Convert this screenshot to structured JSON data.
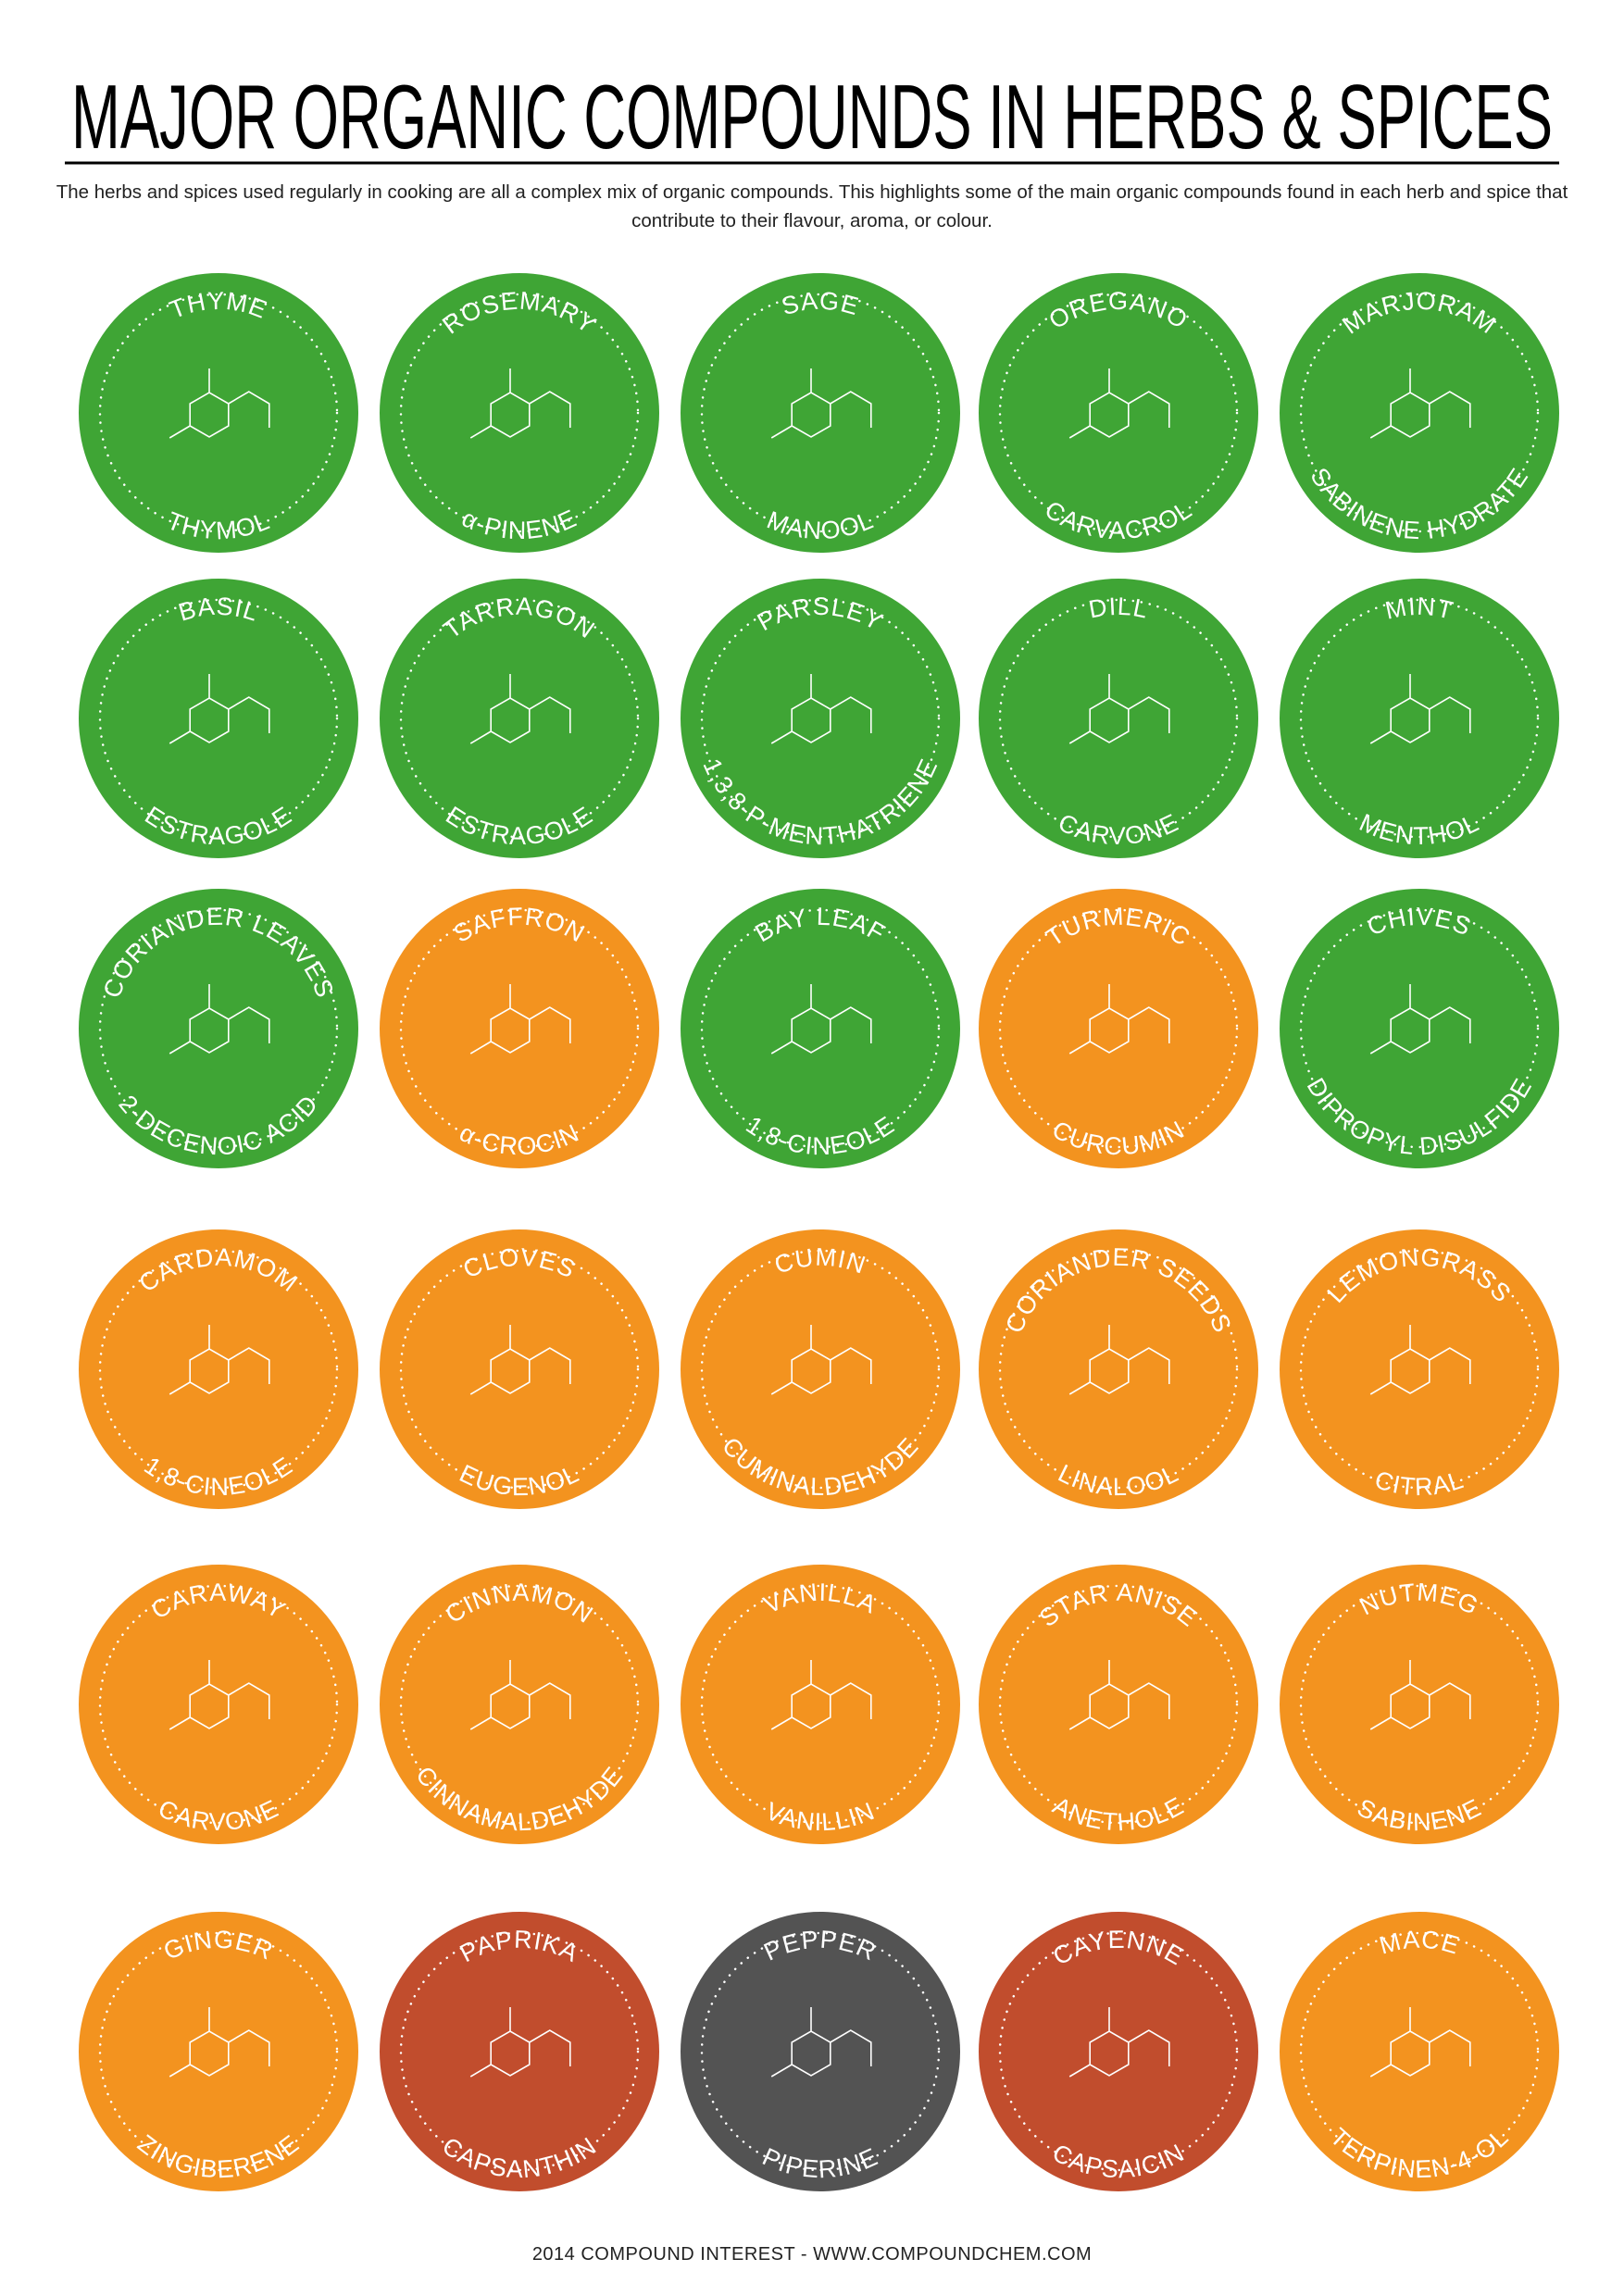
{
  "header": {
    "title": "MAJOR ORGANIC COMPOUNDS IN HERBS & SPICES",
    "subtitle": "The herbs and spices used regularly in cooking are all a complex mix of organic compounds. This highlights some of the main organic compounds found in each herb and spice that contribute to their flavour, aroma, or colour."
  },
  "items": [
    {
      "herb": "THYME",
      "compound": "THYMOL",
      "color": "#3fa535"
    },
    {
      "herb": "ROSEMARY",
      "compound": "α-PINENE",
      "color": "#3fa535"
    },
    {
      "herb": "SAGE",
      "compound": "MANOOL",
      "color": "#3fa535"
    },
    {
      "herb": "OREGANO",
      "compound": "CARVACROL",
      "color": "#3fa535"
    },
    {
      "herb": "MARJORAM",
      "compound": "SABINENE HYDRATE",
      "color": "#3fa535"
    },
    {
      "herb": "BASIL",
      "compound": "ESTRAGOLE",
      "color": "#3fa535"
    },
    {
      "herb": "TARRAGON",
      "compound": "ESTRAGOLE",
      "color": "#3fa535"
    },
    {
      "herb": "PARSLEY",
      "compound": "1,3,8-P-MENTHATRIENE",
      "color": "#3fa535"
    },
    {
      "herb": "DILL",
      "compound": "CARVONE",
      "color": "#3fa535"
    },
    {
      "herb": "MINT",
      "compound": "MENTHOL",
      "color": "#3fa535"
    },
    {
      "herb": "CORIANDER LEAVES",
      "compound": "2-DECENOIC ACID",
      "color": "#3fa535"
    },
    {
      "herb": "SAFFRON",
      "compound": "α-CROCIN",
      "color": "#f3931f"
    },
    {
      "herb": "BAY LEAF",
      "compound": "1,8-CINEOLE",
      "color": "#3fa535"
    },
    {
      "herb": "TURMERIC",
      "compound": "CURCUMIN",
      "color": "#f3931f"
    },
    {
      "herb": "CHIVES",
      "compound": "DIPROPYL DISULFIDE",
      "color": "#3fa535"
    },
    {
      "herb": "CARDAMOM",
      "compound": "1,8-CINEOLE",
      "color": "#f3931f"
    },
    {
      "herb": "CLOVES",
      "compound": "EUGENOL",
      "color": "#f3931f"
    },
    {
      "herb": "CUMIN",
      "compound": "CUMINALDEHYDE",
      "color": "#f3931f"
    },
    {
      "herb": "CORIANDER SEEDS",
      "compound": "LINALOOL",
      "color": "#f3931f"
    },
    {
      "herb": "LEMONGRASS",
      "compound": "CITRAL",
      "color": "#f3931f"
    },
    {
      "herb": "CARAWAY",
      "compound": "CARVONE",
      "color": "#f3931f"
    },
    {
      "herb": "CINNAMON",
      "compound": "CINNAMALDEHYDE",
      "color": "#f3931f"
    },
    {
      "herb": "VANILLA",
      "compound": "VANILLIN",
      "color": "#f3931f"
    },
    {
      "herb": "STAR ANISE",
      "compound": "ANETHOLE",
      "color": "#f3931f"
    },
    {
      "herb": "NUTMEG",
      "compound": "SABINENE",
      "color": "#f3931f"
    },
    {
      "herb": "GINGER",
      "compound": "ZINGIBERENE",
      "color": "#f3931f"
    },
    {
      "herb": "PAPRIKA",
      "compound": "CAPSANTHIN",
      "color": "#c14d2d"
    },
    {
      "herb": "PEPPER",
      "compound": "PIPERINE",
      "color": "#535353"
    },
    {
      "herb": "CAYENNE",
      "compound": "CAPSAICIN",
      "color": "#c14d2d"
    },
    {
      "herb": "MACE",
      "compound": "TERPINEN-4-OL",
      "color": "#f3931f"
    }
  ],
  "footer": "2014 COMPOUND INTEREST - WWW.COMPOUNDCHEM.COM"
}
